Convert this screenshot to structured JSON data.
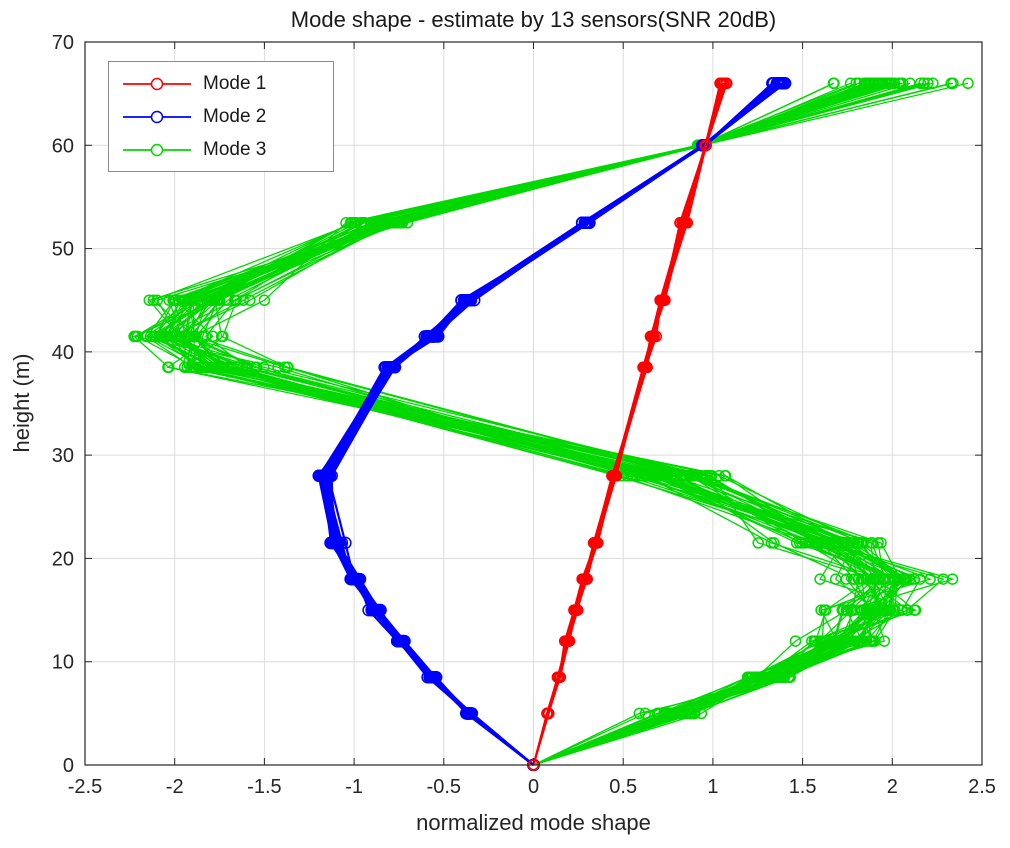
{
  "chart_data": {
    "type": "line",
    "title": "Mode shape - estimate by 13 sensors(SNR 20dB)",
    "xlabel": "normalized mode shape",
    "ylabel": "height (m)",
    "xlim": [
      -2.5,
      2.5
    ],
    "ylim": [
      0,
      70
    ],
    "grid": true,
    "legend_position": "top-left",
    "colors": {
      "plot_bg": "#ffffff",
      "grid": "#dcdcdc",
      "axis": "#262626"
    },
    "x_ticks": {
      "values": [
        -2.5,
        -2,
        -1.5,
        -1,
        -0.5,
        0,
        0.5,
        1,
        1.5,
        2,
        2.5
      ],
      "labels": [
        "-2.5",
        "-2",
        "-1.5",
        "-1",
        "-0.5",
        "0",
        "0.5",
        "1",
        "1.5",
        "2",
        "2.5"
      ]
    },
    "y_ticks": {
      "values": [
        0,
        10,
        20,
        30,
        40,
        50,
        60,
        70
      ],
      "labels": [
        "0",
        "10",
        "20",
        "30",
        "40",
        "50",
        "60",
        "70"
      ]
    },
    "heights": [
      0,
      5,
      8.5,
      12,
      15,
      18,
      21.5,
      28,
      38.5,
      41.5,
      45,
      52.5,
      60,
      66
    ],
    "series": [
      {
        "name": "Mode 1",
        "color": "#ff0000",
        "line_width": 1.8,
        "marker_radius": 5,
        "runs": 15,
        "sigma": 0.01,
        "values": [
          0,
          0.08,
          0.14,
          0.19,
          0.24,
          0.29,
          0.34,
          0.45,
          0.62,
          0.66,
          0.72,
          0.84,
          0.96,
          1.06
        ],
        "noise_scale": [
          0,
          0.4,
          0.5,
          0.6,
          0.7,
          0.7,
          0.8,
          0.9,
          1,
          1,
          1,
          1,
          0.3,
          1
        ]
      },
      {
        "name": "Mode 2",
        "color": "#0000ff",
        "line_width": 2.2,
        "marker_radius": 5.5,
        "runs": 20,
        "sigma": 0.02,
        "values": [
          0,
          -0.36,
          -0.56,
          -0.74,
          -0.88,
          -1.0,
          -1.1,
          -1.16,
          -0.8,
          -0.56,
          -0.38,
          0.3,
          0.95,
          1.38
        ],
        "noise_scale": [
          0,
          0.5,
          0.6,
          0.7,
          0.8,
          0.9,
          1,
          1.1,
          1,
          0.9,
          0.9,
          0.8,
          0.2,
          1.5
        ]
      },
      {
        "name": "Mode 3",
        "color": "#00d800",
        "line_width": 1.3,
        "marker_radius": 5,
        "runs": 45,
        "sigma": 0.13,
        "values": [
          0,
          0.8,
          1.3,
          1.75,
          1.9,
          1.95,
          1.7,
          0.7,
          -1.75,
          -2.0,
          -1.85,
          -0.85,
          0.93,
          1.95
        ],
        "noise_scale": [
          0,
          0.5,
          0.7,
          0.9,
          1.0,
          1.1,
          1.2,
          1.3,
          1.0,
          0.9,
          0.9,
          0.8,
          0.08,
          1.3
        ]
      }
    ]
  }
}
